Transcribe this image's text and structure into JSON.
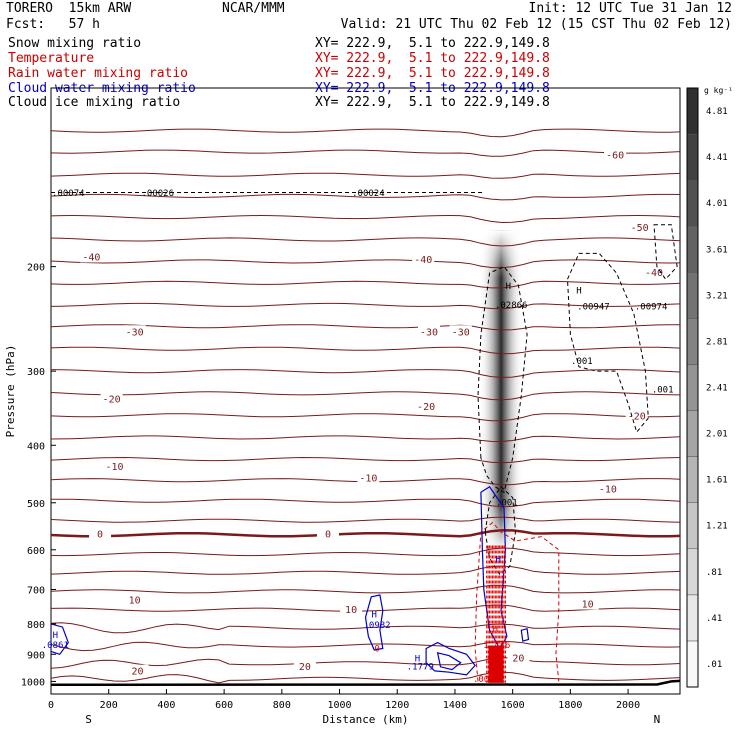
{
  "header": {
    "model": "TORERO  15km ARW",
    "org": "NCAR/MMM",
    "init": "Init: 12 UTC Tue 31 Jan 12",
    "fcst": "Fcst:   57 h",
    "valid": "Valid: 21 UTC Thu 02 Feb 12 (15 CST Thu 02 Feb 12)"
  },
  "fields": [
    {
      "label": "Snow mixing ratio",
      "xy": "XY= 222.9,  5.1 to 222.9,149.8",
      "color": "#000000"
    },
    {
      "label": "Temperature",
      "xy": "XY= 222.9,  5.1 to 222.9,149.8",
      "color": "#cc0000"
    },
    {
      "label": "Rain water mixing ratio",
      "xy": "XY= 222.9,  5.1 to 222.9,149.8",
      "color": "#cc0000"
    },
    {
      "label": "Cloud water mixing ratio",
      "xy": "XY= 222.9,  5.1 to 222.9,149.8",
      "color": "#0000cc"
    },
    {
      "label": "Cloud ice mixing ratio",
      "xy": "XY= 222.9,  5.1 to 222.9,149.8",
      "color": "#000000"
    }
  ],
  "chart_data": {
    "type": "cross-section contour",
    "xlabel": "Distance (km)",
    "ylabel": "Pressure (hPa)",
    "xlim": [
      0,
      2180
    ],
    "ylim": [
      1050,
      100
    ],
    "y_scale": "log",
    "x_ticks": [
      0,
      200,
      400,
      600,
      800,
      1000,
      1200,
      1400,
      1600,
      1800,
      2000
    ],
    "y_ticks": [
      200,
      300,
      400,
      500,
      600,
      700,
      800,
      900,
      1000
    ],
    "x_end_labels": {
      "left": "S",
      "right": "N"
    },
    "temperature_contours": {
      "color": "#7a1a1a",
      "levels": [
        -60,
        -50,
        -40,
        -30,
        -20,
        -10,
        0,
        10,
        20
      ],
      "labels": [
        {
          "text": "-60",
          "x": 1955,
          "p": 130
        },
        {
          "text": "-50",
          "x": 2040,
          "p": 172
        },
        {
          "text": "-40",
          "x": 140,
          "p": 193
        },
        {
          "text": "-40",
          "x": 1290,
          "p": 195
        },
        {
          "text": "-40",
          "x": 2090,
          "p": 205
        },
        {
          "text": "-30",
          "x": 290,
          "p": 258
        },
        {
          "text": "-30",
          "x": 1310,
          "p": 258
        },
        {
          "text": "-30",
          "x": 1420,
          "p": 258
        },
        {
          "text": "-20",
          "x": 210,
          "p": 335
        },
        {
          "text": "-20",
          "x": 1300,
          "p": 345
        },
        {
          "text": "-20",
          "x": 2030,
          "p": 358
        },
        {
          "text": "-10",
          "x": 220,
          "p": 435
        },
        {
          "text": "-10",
          "x": 1100,
          "p": 455
        },
        {
          "text": "-10",
          "x": 1930,
          "p": 475
        },
        {
          "text": "0",
          "x": 170,
          "p": 565
        },
        {
          "text": "0",
          "x": 960,
          "p": 565
        },
        {
          "text": "10",
          "x": 290,
          "p": 730
        },
        {
          "text": "10",
          "x": 1040,
          "p": 758
        },
        {
          "text": "10",
          "x": 1860,
          "p": 742
        },
        {
          "text": "20",
          "x": 300,
          "p": 963
        },
        {
          "text": "20",
          "x": 880,
          "p": 945
        },
        {
          "text": "20",
          "x": 1620,
          "p": 915
        }
      ]
    },
    "snow_shading": {
      "colorbar_unit": "g kg⁻¹",
      "colorbar_levels": [
        ".01",
        ".41",
        ".81",
        "1.21",
        "1.61",
        "2.01",
        "2.41",
        "2.81",
        "3.21",
        "3.61",
        "4.01",
        "4.41",
        "4.81"
      ],
      "core_x": 1560,
      "core_p_range": [
        215,
        600
      ]
    },
    "ice_labels": [
      {
        "text": ".00074",
        "x": 60,
        "p": 152
      },
      {
        "text": ".00026",
        "x": 370,
        "p": 152
      },
      {
        "text": ".00024",
        "x": 1100,
        "p": 152
      },
      {
        "text": "H",
        "x": 1585,
        "p": 218
      },
      {
        "text": ".02866",
        "x": 1595,
        "p": 235
      },
      {
        "text": "H",
        "x": 1830,
        "p": 222
      },
      {
        "text": ".00947",
        "x": 1880,
        "p": 236
      },
      {
        "text": ".00974",
        "x": 2080,
        "p": 236
      },
      {
        "text": ".001",
        "x": 1840,
        "p": 292
      },
      {
        "text": ".001",
        "x": 2120,
        "p": 326
      },
      {
        "text": ".001",
        "x": 1580,
        "p": 505
      }
    ],
    "cloud_labels": [
      {
        "text": "H",
        "x": 1120,
        "p": 780
      },
      {
        "text": ".0982",
        "x": 1130,
        "p": 812
      },
      {
        "text": "H",
        "x": 15,
        "p": 845
      },
      {
        "text": ".0861",
        "x": 15,
        "p": 878
      },
      {
        "text": "H",
        "x": 1270,
        "p": 925
      },
      {
        "text": ".1779",
        "x": 1280,
        "p": 955
      },
      {
        "text": "H",
        "x": 1550,
        "p": 630
      }
    ],
    "rain_labels": [
      {
        "text": "H",
        "x": 1540,
        "p": 826
      },
      {
        "text": "1.446",
        "x": 1545,
        "p": 878
      },
      {
        "text": ".001",
        "x": 1500,
        "p": 1003
      },
      {
        "text": "0",
        "x": 1130,
        "p": 890
      }
    ]
  }
}
